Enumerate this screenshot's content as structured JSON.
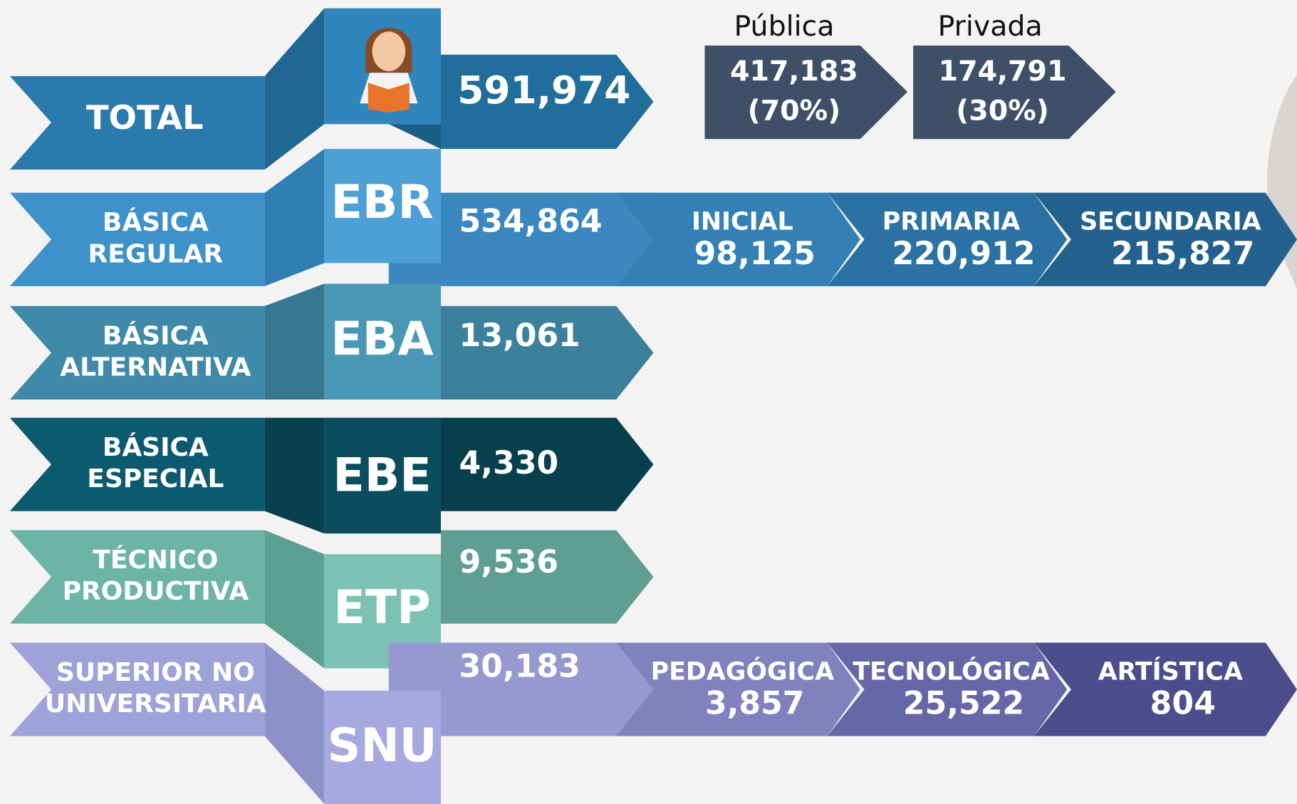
{
  "total": {
    "label": "TOTAL",
    "value": "591,974"
  },
  "sectors": [
    {
      "label": "Pública",
      "value": "417,183",
      "share": "(70%)"
    },
    {
      "label": "Privada",
      "value": "174,791",
      "share": "(30%)"
    }
  ],
  "rows": [
    {
      "label_lines": [
        "BÁSICA",
        "REGULAR"
      ],
      "code": "EBR",
      "value": "534,864",
      "levels": [
        {
          "label": "INICIAL",
          "value": "98,125"
        },
        {
          "label": "PRIMARIA",
          "value": "220,912"
        },
        {
          "label": "SECUNDARIA",
          "value": "215,827"
        }
      ]
    },
    {
      "label_lines": [
        "BÁSICA",
        "ALTERNATIVA"
      ],
      "code": "EBA",
      "value": "13,061",
      "levels": []
    },
    {
      "label_lines": [
        "BÁSICA",
        "ESPECIAL"
      ],
      "code": "EBE",
      "value": "4,330",
      "levels": []
    },
    {
      "label_lines": [
        "TÉCNICO",
        "PRODUCTIVA"
      ],
      "code": "ETP",
      "value": "9,536",
      "levels": []
    },
    {
      "label_lines": [
        "SUPERIOR NO",
        "UNIVERSITARIA"
      ],
      "code": "SNU",
      "value": "30,183",
      "levels": [
        {
          "label": "PEDAGÓGICA",
          "value": "3,857"
        },
        {
          "label": "TECNOLÓGICA",
          "value": "25,522"
        },
        {
          "label": "ARTÍSTICA",
          "value": "804"
        }
      ]
    }
  ]
}
